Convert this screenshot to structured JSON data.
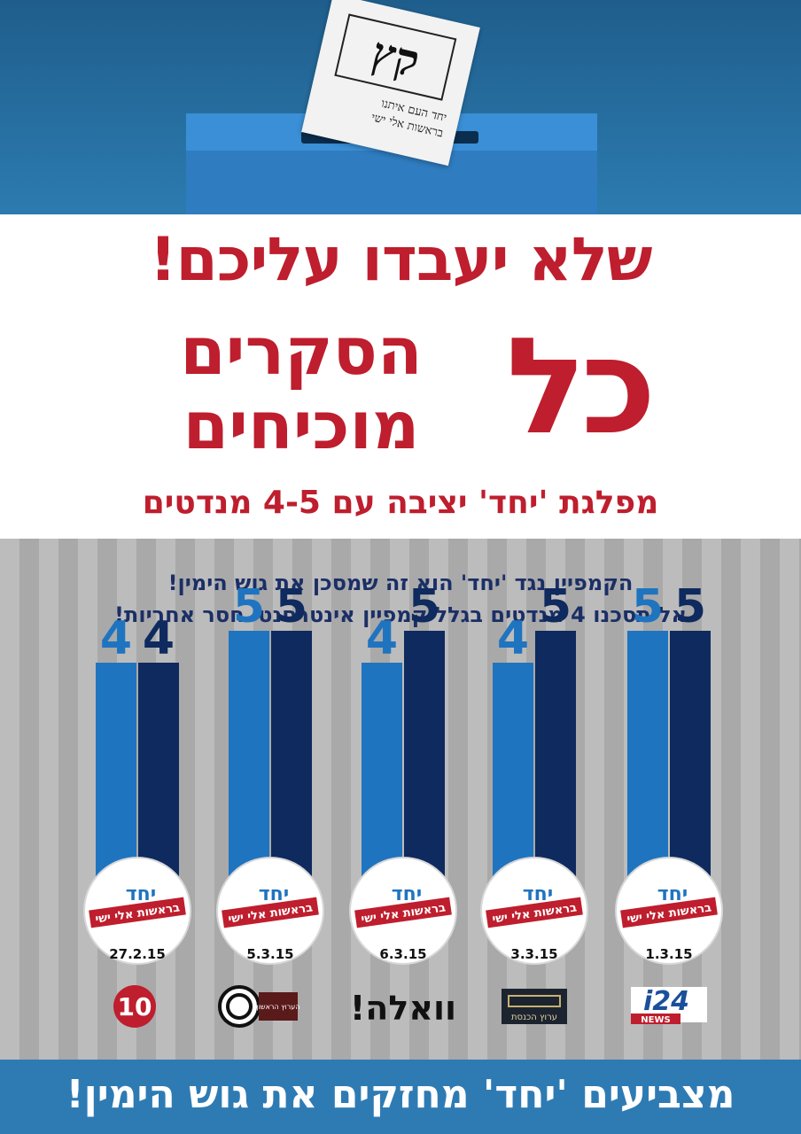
{
  "ballot": {
    "letters": "קץ",
    "line1": "יחד העם איתנו",
    "line2": "בראשות אלי ישי"
  },
  "headline": {
    "line1": "שלא יעבדו עליכם!",
    "kol": "כל",
    "seker": "הסקרים",
    "mochichim": "מוכיחים",
    "sub": "מפלגת 'יחד' יציבה עם 4-5 מנדטים"
  },
  "chart_heading": {
    "line1": "הקמפיין נגד 'יחד' הוא זה שמסכן את גוש הימין!",
    "line2": "אל תסכנו 4 מנדטים בגלל קמפיין אינטרסנטי חסר אחריות!"
  },
  "badge": {
    "name": "יחד",
    "ribbon": "בראשות אלי ישי"
  },
  "colors": {
    "light_bar": "#1f74c0",
    "dark_bar": "#0e2a5e",
    "red": "#be1e2d",
    "footer": "#2e7bb4"
  },
  "chart_data": {
    "type": "bar",
    "series": [
      {
        "values": [
          5,
          5,
          5,
          5,
          4
        ]
      },
      {
        "values": [
          5,
          4,
          4,
          5,
          4
        ]
      }
    ],
    "categories": [
      "1.3.15",
      "3.3.15",
      "6.3.15",
      "5.3.15",
      "27.2.15"
    ],
    "sources": [
      "i24 NEWS",
      "ערוץ הכנסת",
      "וואלה!",
      "הערוץ הראשון",
      "10"
    ],
    "title": "",
    "xlabel": "",
    "ylabel": ""
  },
  "logos": {
    "i24": "i24",
    "i24_sub": "NEWS",
    "knesset": "ערוץ הכנסת",
    "walla": "וואלה!",
    "ch1": "הערוץ הראשון",
    "ch10": "10"
  },
  "footer": {
    "text": "מצביעים 'יחד' מחזקים את גוש הימין!"
  }
}
